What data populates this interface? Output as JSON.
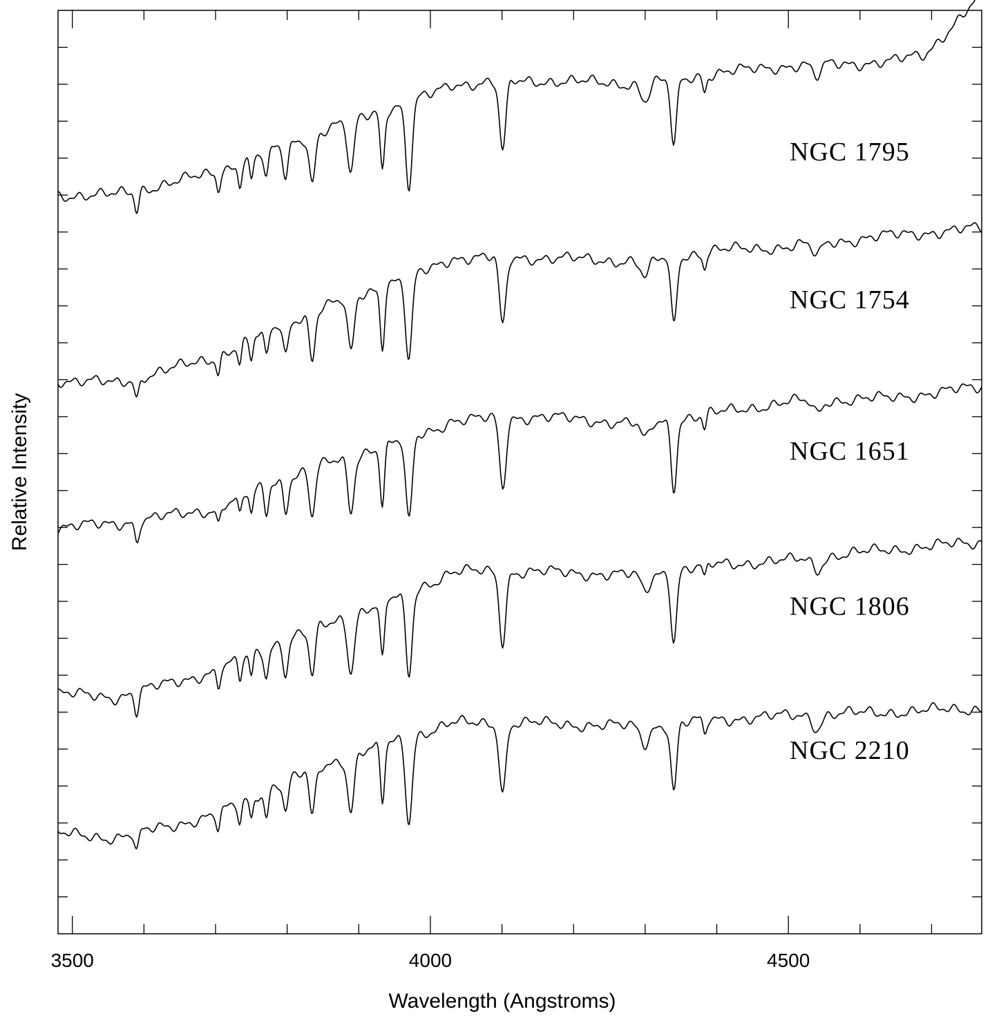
{
  "chart_data": {
    "type": "line",
    "title": "",
    "xlabel": "Wavelength (Angstroms)",
    "ylabel": "Relative Intensity",
    "xlim": [
      3480,
      4770
    ],
    "ylim": [
      0,
      25
    ],
    "x_ticks": [
      3500,
      4000,
      4500
    ],
    "x_tick_labels": [
      "3500",
      "4000",
      "4500"
    ],
    "x_minor_step": 100,
    "y_tick_count": 25,
    "grid": false,
    "legend": "none",
    "line_color": "#000000",
    "absorption_lines": [
      {
        "x": 3590,
        "depth": 0.55,
        "width": 3
      },
      {
        "x": 3704,
        "depth": 0.45,
        "width": 2.5
      },
      {
        "x": 3734,
        "depth": 0.55,
        "width": 2.5
      },
      {
        "x": 3750,
        "depth": 0.6,
        "width": 2.5
      },
      {
        "x": 3771,
        "depth": 0.75,
        "width": 3
      },
      {
        "x": 3798,
        "depth": 0.9,
        "width": 3.5
      },
      {
        "x": 3835,
        "depth": 1.3,
        "width": 4
      },
      {
        "x": 3889,
        "depth": 1.5,
        "width": 4.5
      },
      {
        "x": 3933,
        "depth": 1.6,
        "width": 3
      },
      {
        "x": 3970,
        "depth": 2.3,
        "width": 4.5
      },
      {
        "x": 4101,
        "depth": 1.9,
        "width": 4.5
      },
      {
        "x": 4300,
        "depth": 0.45,
        "width": 6
      },
      {
        "x": 4340,
        "depth": 1.85,
        "width": 4
      },
      {
        "x": 4383,
        "depth": 0.4,
        "width": 2.5
      },
      {
        "x": 4540,
        "depth": 0.35,
        "width": 6
      }
    ],
    "series": [
      {
        "name": "NGC 1795",
        "offset": 20.0,
        "label_y": 21.2,
        "red_rise": 1.6,
        "continuum": [
          [
            3480,
            0.0
          ],
          [
            3560,
            0.0
          ],
          [
            3700,
            0.6
          ],
          [
            3790,
            1.3
          ],
          [
            3900,
            2.1
          ],
          [
            4000,
            2.7
          ],
          [
            4030,
            3.0
          ],
          [
            4150,
            3.1
          ],
          [
            4300,
            3.0
          ],
          [
            4400,
            3.3
          ],
          [
            4500,
            3.5
          ],
          [
            4640,
            3.6
          ],
          [
            4690,
            3.8
          ]
        ]
      },
      {
        "name": "NGC 1754",
        "offset": 15.0,
        "label_y": 17.2,
        "red_rise": 0.0,
        "continuum": [
          [
            3480,
            0.0
          ],
          [
            3560,
            -0.1
          ],
          [
            3700,
            0.6
          ],
          [
            3790,
            1.5
          ],
          [
            3900,
            2.3
          ],
          [
            4000,
            3.0
          ],
          [
            4030,
            3.3
          ],
          [
            4150,
            3.3
          ],
          [
            4300,
            3.2
          ],
          [
            4400,
            3.5
          ],
          [
            4500,
            3.6
          ],
          [
            4640,
            3.9
          ],
          [
            4770,
            4.1
          ]
        ]
      },
      {
        "name": "NGC 1651",
        "offset": 11.0,
        "label_y": 13.1,
        "red_rise": 0.0,
        "continuum": [
          [
            3480,
            0.0
          ],
          [
            3560,
            0.1
          ],
          [
            3700,
            0.5
          ],
          [
            3790,
            1.3
          ],
          [
            3900,
            2.0
          ],
          [
            4000,
            2.6
          ],
          [
            4030,
            2.9
          ],
          [
            4150,
            3.0
          ],
          [
            4300,
            2.8
          ],
          [
            4400,
            3.1
          ],
          [
            4500,
            3.4
          ],
          [
            4640,
            3.5
          ],
          [
            4770,
            3.8
          ]
        ]
      },
      {
        "name": "NGC 1806",
        "offset": 6.5,
        "label_y": 8.9,
        "red_rise": 0.0,
        "continuum": [
          [
            3480,
            0.0
          ],
          [
            3560,
            -0.1
          ],
          [
            3700,
            0.6
          ],
          [
            3790,
            1.4
          ],
          [
            3900,
            2.2
          ],
          [
            4000,
            3.0
          ],
          [
            4030,
            3.3
          ],
          [
            4150,
            3.3
          ],
          [
            4300,
            3.2
          ],
          [
            4400,
            3.5
          ],
          [
            4500,
            3.6
          ],
          [
            4640,
            3.9
          ],
          [
            4770,
            4.1
          ]
        ]
      },
      {
        "name": "NGC 2210",
        "offset": 2.7,
        "label_y": 5.0,
        "red_rise": 0.0,
        "continuum": [
          [
            3480,
            0.0
          ],
          [
            3560,
            -0.1
          ],
          [
            3700,
            0.5
          ],
          [
            3790,
            1.4
          ],
          [
            3900,
            2.2
          ],
          [
            4000,
            2.8
          ],
          [
            4030,
            3.0
          ],
          [
            4150,
            3.0
          ],
          [
            4300,
            2.9
          ],
          [
            4400,
            3.1
          ],
          [
            4500,
            3.2
          ],
          [
            4640,
            3.3
          ],
          [
            4770,
            3.4
          ]
        ]
      }
    ]
  }
}
